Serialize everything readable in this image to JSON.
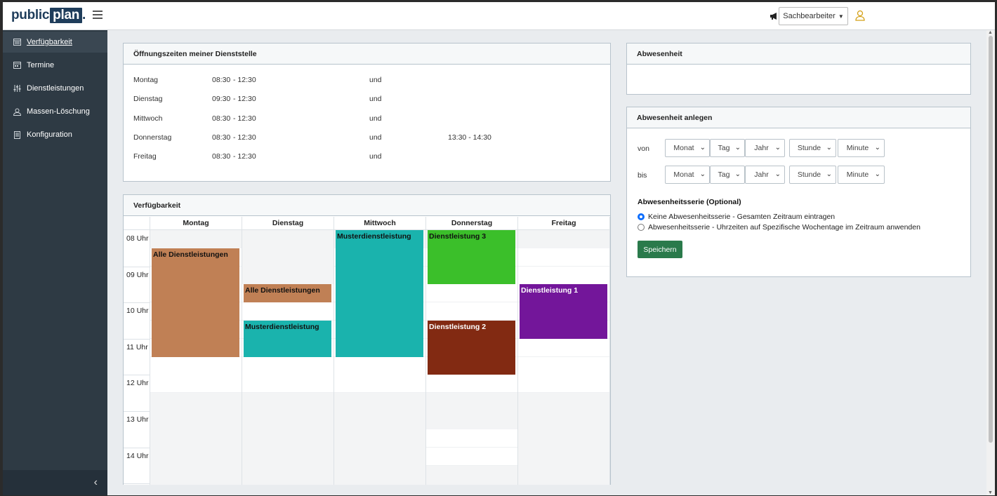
{
  "header": {
    "logo_public": "public",
    "logo_plan": "plan",
    "logo_dot": ".",
    "role": "Sachbearbeiter"
  },
  "sidebar": {
    "items": [
      {
        "label": "Verfügbarkeit",
        "icon": "calendar-week-icon"
      },
      {
        "label": "Termine",
        "icon": "calendar-icon"
      },
      {
        "label": "Dienstleistungen",
        "icon": "sliders-icon"
      },
      {
        "label": "Massen-Löschung",
        "icon": "user-icon"
      },
      {
        "label": "Konfiguration",
        "icon": "file-icon"
      }
    ],
    "collapse": "‹"
  },
  "opening_hours": {
    "title": "Öffnungszeiten meiner Dienststelle",
    "rows": [
      {
        "day": "Montag",
        "from1": "08:30",
        "to1": "- 12:30",
        "und": "und",
        "second": ""
      },
      {
        "day": "Dienstag",
        "from1": "09:30",
        "to1": "- 12:30",
        "und": "und",
        "second": ""
      },
      {
        "day": "Mittwoch",
        "from1": "08:30",
        "to1": "- 12:30",
        "und": "und",
        "second": ""
      },
      {
        "day": "Donnerstag",
        "from1": "08:30",
        "to1": "- 12:30",
        "und": "und",
        "second": "13:30 - 14:30"
      },
      {
        "day": "Freitag",
        "from1": "08:30",
        "to1": "- 12:30",
        "und": "und",
        "second": ""
      }
    ]
  },
  "availability": {
    "title": "Verfügbarkeit",
    "days": [
      "Montag",
      "Dienstag",
      "Mittwoch",
      "Donnerstag",
      "Freitag"
    ],
    "hours": [
      "08 Uhr",
      "09 Uhr",
      "10 Uhr",
      "11 Uhr",
      "12 Uhr",
      "13 Uhr",
      "14 Uhr"
    ],
    "events": [
      {
        "day": 0,
        "start": "08:30",
        "end": "11:30",
        "label": "Alle Dienstleistungen",
        "color": "#c08055",
        "light": false
      },
      {
        "day": 1,
        "start": "09:30",
        "end": "10:00",
        "label": "Alle Dienstleistungen",
        "color": "#c08055",
        "light": false
      },
      {
        "day": 1,
        "start": "10:30",
        "end": "11:30",
        "label": "Musterdienstleistung",
        "color": "#1ab3ad",
        "light": false
      },
      {
        "day": 2,
        "start": "08:00",
        "end": "11:30",
        "label": "Musterdienstleistung",
        "color": "#1ab3ad",
        "light": false
      },
      {
        "day": 3,
        "start": "08:00",
        "end": "09:30",
        "label": "Dienstleistung 3",
        "color": "#3bbf2a",
        "light": false
      },
      {
        "day": 3,
        "start": "10:30",
        "end": "12:00",
        "label": "Dienstleistung 2",
        "color": "#822a12",
        "light": true
      },
      {
        "day": 4,
        "start": "09:30",
        "end": "11:00",
        "label": "Dienstleistung 1",
        "color": "#73169a",
        "light": true
      }
    ]
  },
  "absence": {
    "title": "Abwesenheit"
  },
  "create_absence": {
    "title": "Abwesenheit anlegen",
    "from_label": "von",
    "to_label": "bis",
    "month": "Monat",
    "day": "Tag",
    "year": "Jahr",
    "hour": "Stunde",
    "minute": "Minute",
    "series_title": "Abwesenheitsserie (Optional)",
    "option1": "Keine Abwesenheitsserie - Gesamten Zeitraum eintragen",
    "option2": "Abwesenheitsserie - Uhrzeiten auf Spezifische Wochentage im Zeitraum anwenden",
    "save": "Speichern"
  }
}
